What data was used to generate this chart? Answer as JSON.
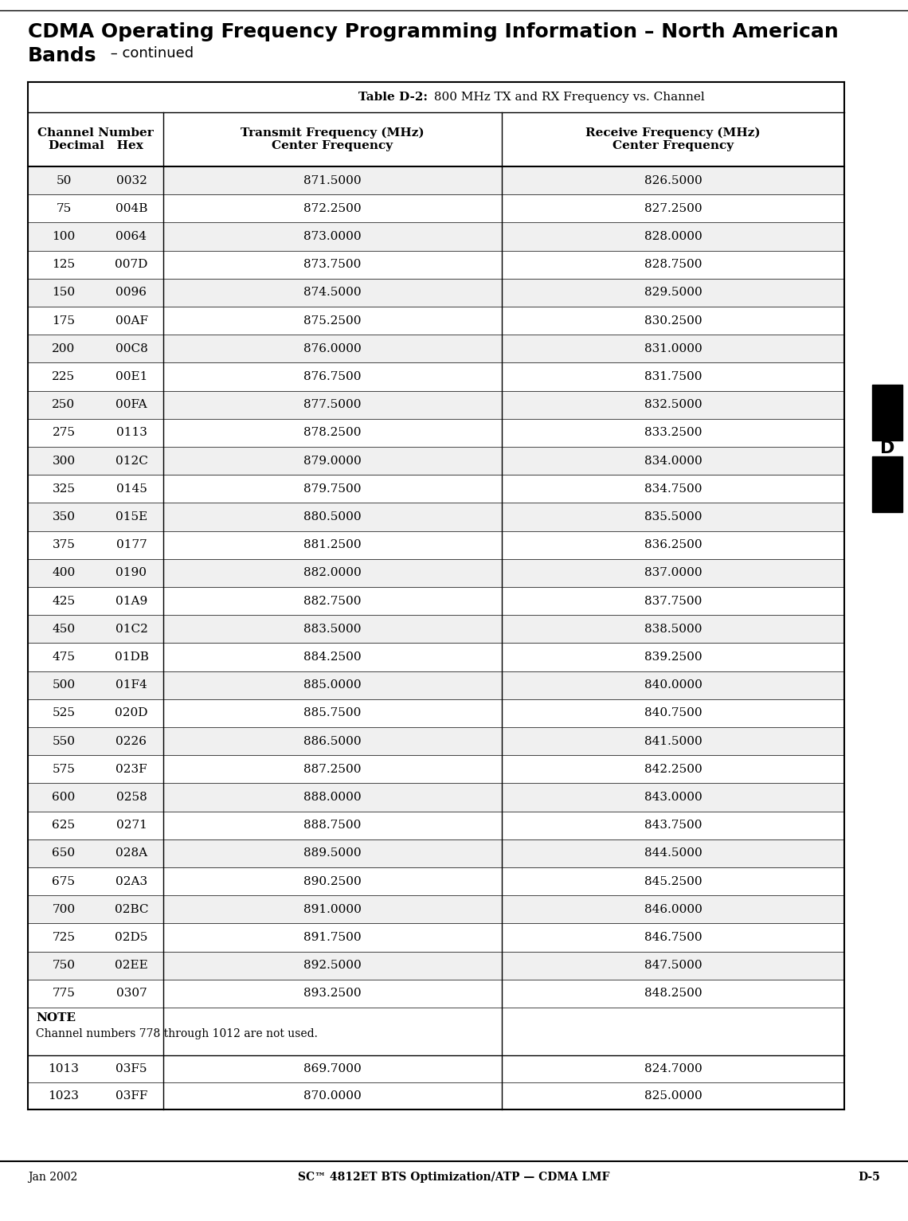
{
  "title_line1": "CDMA Operating Frequency Programming Information – North American",
  "title_line2": "Bands",
  "title_continued": " – continued",
  "table_title_bold": "Table D-2:",
  "table_title_rest": " 800 MHz TX and RX Frequency vs. Channel",
  "rows": [
    [
      "50",
      "0032",
      "871.5000",
      "826.5000"
    ],
    [
      "75",
      "004B",
      "872.2500",
      "827.2500"
    ],
    [
      "100",
      "0064",
      "873.0000",
      "828.0000"
    ],
    [
      "125",
      "007D",
      "873.7500",
      "828.7500"
    ],
    [
      "150",
      "0096",
      "874.5000",
      "829.5000"
    ],
    [
      "175",
      "00AF",
      "875.2500",
      "830.2500"
    ],
    [
      "200",
      "00C8",
      "876.0000",
      "831.0000"
    ],
    [
      "225",
      "00E1",
      "876.7500",
      "831.7500"
    ],
    [
      "250",
      "00FA",
      "877.5000",
      "832.5000"
    ],
    [
      "275",
      "0113",
      "878.2500",
      "833.2500"
    ],
    [
      "300",
      "012C",
      "879.0000",
      "834.0000"
    ],
    [
      "325",
      "0145",
      "879.7500",
      "834.7500"
    ],
    [
      "350",
      "015E",
      "880.5000",
      "835.5000"
    ],
    [
      "375",
      "0177",
      "881.2500",
      "836.2500"
    ],
    [
      "400",
      "0190",
      "882.0000",
      "837.0000"
    ],
    [
      "425",
      "01A9",
      "882.7500",
      "837.7500"
    ],
    [
      "450",
      "01C2",
      "883.5000",
      "838.5000"
    ],
    [
      "475",
      "01DB",
      "884.2500",
      "839.2500"
    ],
    [
      "500",
      "01F4",
      "885.0000",
      "840.0000"
    ],
    [
      "525",
      "020D",
      "885.7500",
      "840.7500"
    ],
    [
      "550",
      "0226",
      "886.5000",
      "841.5000"
    ],
    [
      "575",
      "023F",
      "887.2500",
      "842.2500"
    ],
    [
      "600",
      "0258",
      "888.0000",
      "843.0000"
    ],
    [
      "625",
      "0271",
      "888.7500",
      "843.7500"
    ],
    [
      "650",
      "028A",
      "889.5000",
      "844.5000"
    ],
    [
      "675",
      "02A3",
      "890.2500",
      "845.2500"
    ],
    [
      "700",
      "02BC",
      "891.0000",
      "846.0000"
    ],
    [
      "725",
      "02D5",
      "891.7500",
      "846.7500"
    ],
    [
      "750",
      "02EE",
      "892.5000",
      "847.5000"
    ],
    [
      "775",
      "0307",
      "893.2500",
      "848.2500"
    ]
  ],
  "note_label": "NOTE",
  "note_text": "Channel numbers 778 through 1012 are not used.",
  "extra_rows": [
    [
      "1013",
      "03F5",
      "869.7000",
      "824.7000"
    ],
    [
      "1023",
      "03FF",
      "870.0000",
      "825.0000"
    ]
  ],
  "footer_left": "Jan 2002",
  "footer_center": "SC™ 4812ET BTS Optimization/ATP — CDMA LMF",
  "footer_right": "D-5",
  "sidebar_letter": "D",
  "bg_color": "#ffffff"
}
